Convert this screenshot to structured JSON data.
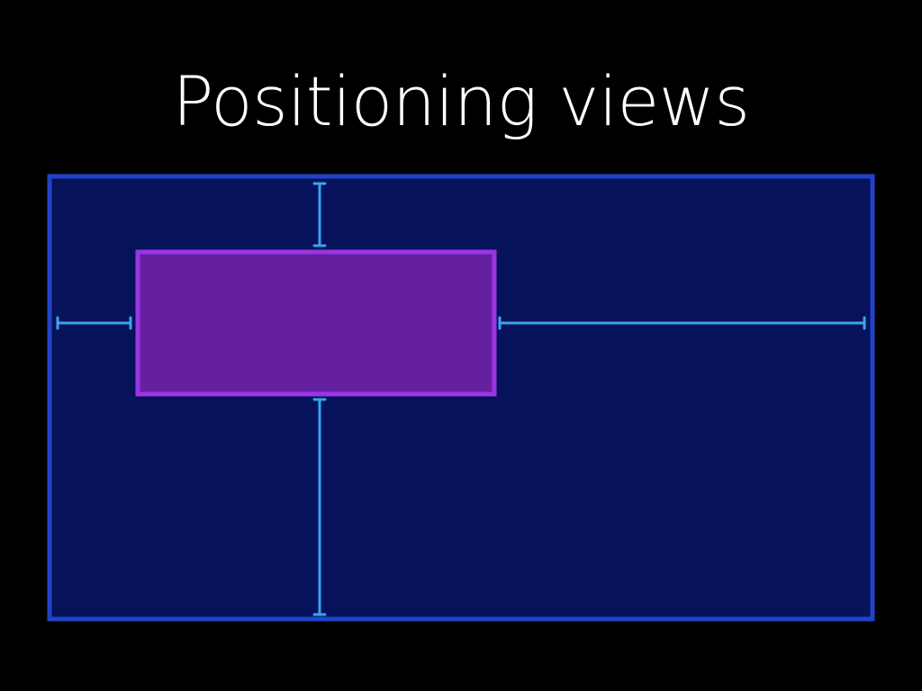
{
  "slide": {
    "title": "Positioning views"
  },
  "colors": {
    "background": "#000000",
    "title_text": "#ffffff",
    "superview_fill": "#06125a",
    "superview_border": "#2143c8",
    "subview_fill": "#65209f",
    "subview_border": "#9a35e6",
    "dimension_line": "#3aa3f0"
  },
  "diagram": {
    "superview": {
      "label": "",
      "role": "parent-view"
    },
    "subview": {
      "label": "",
      "role": "child-view"
    },
    "dimension_markers": [
      {
        "name": "top-margin-marker",
        "edge": "top",
        "label": ""
      },
      {
        "name": "bottom-margin-marker",
        "edge": "bottom",
        "label": ""
      },
      {
        "name": "left-margin-marker",
        "edge": "left",
        "label": ""
      },
      {
        "name": "right-margin-marker",
        "edge": "right",
        "label": ""
      }
    ]
  }
}
